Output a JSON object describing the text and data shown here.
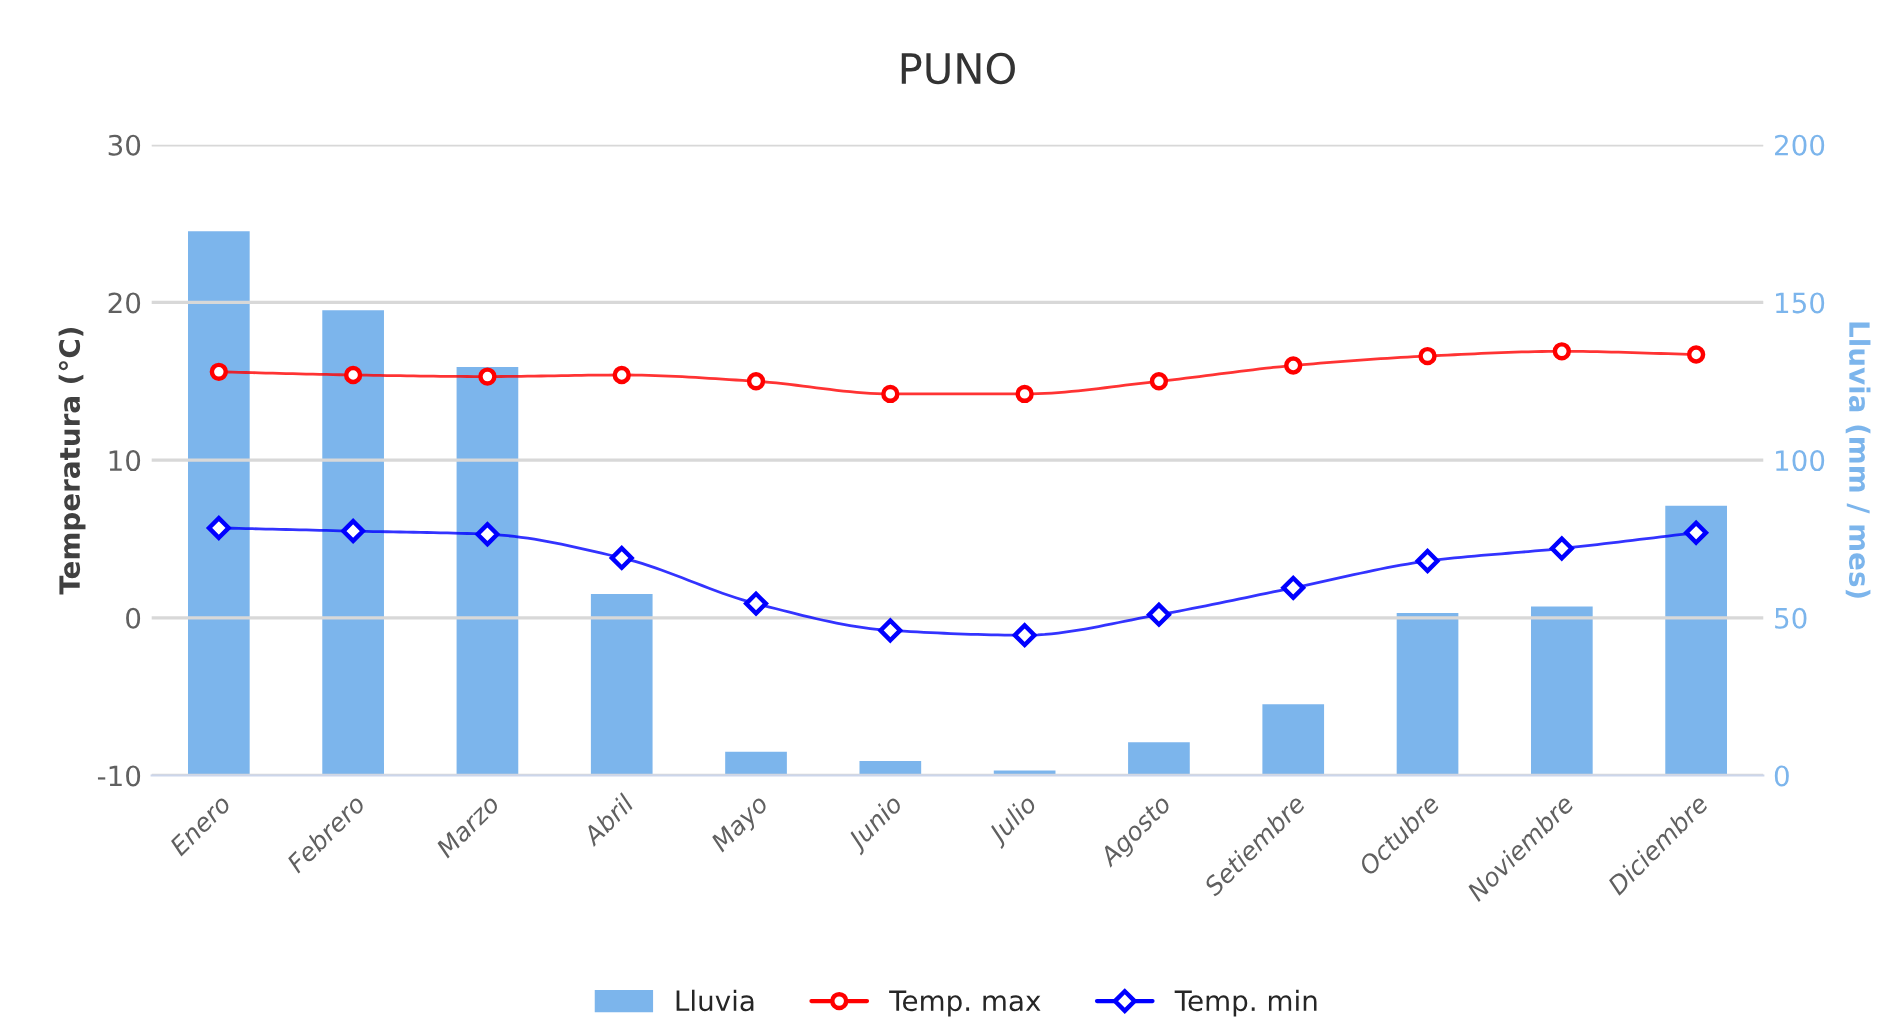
{
  "chart_data": {
    "type": "bar",
    "title": "PUNO",
    "ylabel": "Temperatura (°C)",
    "y2label": "Lluvia (mm / mes)",
    "categories": [
      "Enero",
      "Febrero",
      "Marzo",
      "Abril",
      "Mayo",
      "Junio",
      "Julio",
      "Agosto",
      "Setiembre",
      "Octubre",
      "Noviembre",
      "Diciembre"
    ],
    "series": [
      {
        "name": "Lluvia",
        "axis": "y2",
        "color": "#7cb5ec",
        "values": [
          173,
          148,
          130,
          58,
          8,
          5,
          2,
          11,
          23,
          52,
          54,
          86
        ]
      },
      {
        "name": "Temp. max",
        "type": "line",
        "color": "#ff0000",
        "marker": "circle",
        "values": [
          15.6,
          15.4,
          15.3,
          15.4,
          15.0,
          14.2,
          14.2,
          15.0,
          16.0,
          16.6,
          16.9,
          16.7
        ]
      },
      {
        "name": "Temp. min",
        "type": "line",
        "color": "#0000ff",
        "marker": "diamond",
        "values": [
          5.7,
          5.5,
          5.3,
          3.8,
          0.9,
          -0.8,
          -1.1,
          0.2,
          1.9,
          3.6,
          4.4,
          5.4
        ]
      }
    ],
    "ylim": [
      -10,
      30
    ],
    "yticks": [
      -10,
      0,
      10,
      20,
      30
    ],
    "y2lim": [
      0,
      200
    ],
    "y2ticks": [
      0,
      50,
      100,
      150,
      200
    ],
    "grid": "y",
    "legend": "bottom",
    "line_style": "solid"
  }
}
